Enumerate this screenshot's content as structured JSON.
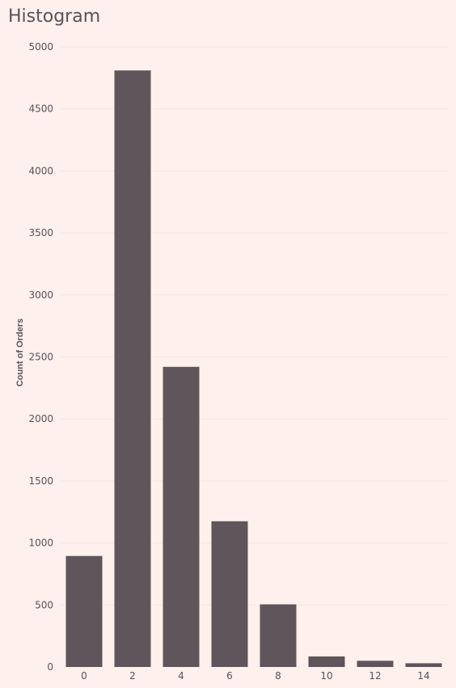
{
  "chart_data": {
    "type": "bar",
    "title": "Histogram",
    "xlabel": "",
    "ylabel": "Count of Orders",
    "categories": [
      "0",
      "2",
      "4",
      "6",
      "8",
      "10",
      "12",
      "14"
    ],
    "values": [
      895,
      4810,
      2420,
      1175,
      505,
      85,
      50,
      30
    ],
    "ylim": [
      0,
      5000
    ],
    "yticks": [
      "0",
      "500",
      "1000",
      "1500",
      "2000",
      "2500",
      "3000",
      "3500",
      "4000",
      "4500",
      "5000"
    ],
    "grid": true,
    "legend": "none",
    "colors": {
      "bar": "#5f555b",
      "background": "#fdf0ed",
      "text": "#5b5157",
      "grid": "#f8e6e2"
    }
  }
}
